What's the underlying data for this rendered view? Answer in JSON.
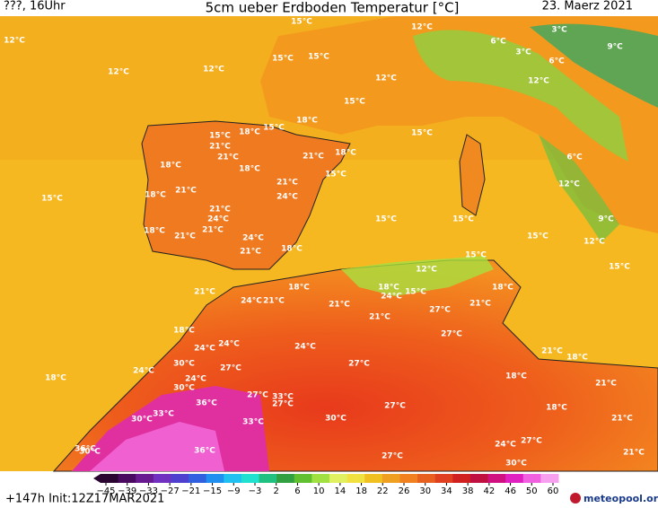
{
  "header": {
    "left": "???, 16Uhr",
    "title": "5cm ueber Erdboden Temperatur [°C]",
    "date": "23. Maerz 2021"
  },
  "labels": [
    "12°C",
    "12°C",
    "12°C",
    "15°C",
    "12°C",
    "15°C",
    "12°C",
    "9°C",
    "6°C",
    "3°C",
    "3°C",
    "6°C",
    "15°C",
    "12°C",
    "15°C",
    "18°C",
    "15°C",
    "18°C",
    "15°C",
    "21°C",
    "21°C",
    "18°C",
    "18°C",
    "21°C",
    "18°C",
    "15°C",
    "18°C",
    "21°C",
    "21°C",
    "24°C",
    "21°C",
    "24°C",
    "15°C",
    "18°C",
    "21°C",
    "21°C",
    "24°C",
    "21°C",
    "18°C",
    "15°C",
    "15°C",
    "15°C",
    "15°C",
    "12°C",
    "9°C",
    "6°C",
    "12°C",
    "15°C",
    "15°C",
    "12°C",
    "21°C",
    "18°C",
    "24°C",
    "21°C",
    "18°C",
    "15°C",
    "21°C",
    "24°C",
    "27°C",
    "21°C",
    "18°C",
    "21°C",
    "27°C",
    "24°C",
    "24°C",
    "27°C",
    "18°C",
    "27°C",
    "24°C",
    "24°C",
    "30°C",
    "24°C",
    "18°C",
    "30°C",
    "36°C",
    "33°C",
    "30°C",
    "27°C",
    "33°C",
    "27°C",
    "36°C",
    "30°C",
    "33°C",
    "30°C",
    "36°C",
    "27°C",
    "27°C",
    "30°C",
    "24°C",
    "27°C",
    "21°C",
    "21°C",
    "18°C",
    "18°C",
    "21°C",
    "21°C",
    "18°C"
  ],
  "colorbar": {
    "ticks": [
      {
        "value": -45,
        "label": "−45"
      },
      {
        "value": -39,
        "label": "−39"
      },
      {
        "value": -33,
        "label": "−33"
      },
      {
        "value": -27,
        "label": "−27"
      },
      {
        "value": -21,
        "label": "−21"
      },
      {
        "value": -15,
        "label": "−15"
      },
      {
        "value": -9,
        "label": "−9"
      },
      {
        "value": -3,
        "label": "−3"
      },
      2,
      6,
      10,
      14,
      18,
      22,
      26,
      30,
      34,
      38,
      42,
      46,
      50,
      60
    ],
    "colors": [
      "#2a0530",
      "#4a0a60",
      "#6a1a90",
      "#7030c0",
      "#5040d0",
      "#3060e0",
      "#2090f0",
      "#20c0f0",
      "#20e0d0",
      "#20c080",
      "#30a040",
      "#60c030",
      "#a0e040",
      "#e0f060",
      "#f0e040",
      "#f0c020",
      "#f0a020",
      "#f08020",
      "#e86020",
      "#e04020",
      "#d02020",
      "#c01040",
      "#d01080",
      "#e020c0",
      "#f060e0",
      "#f8a0f0"
    ]
  },
  "footer": {
    "run": "+147h Init:12Z17MAR2021",
    "brand": "meteopool.org"
  }
}
